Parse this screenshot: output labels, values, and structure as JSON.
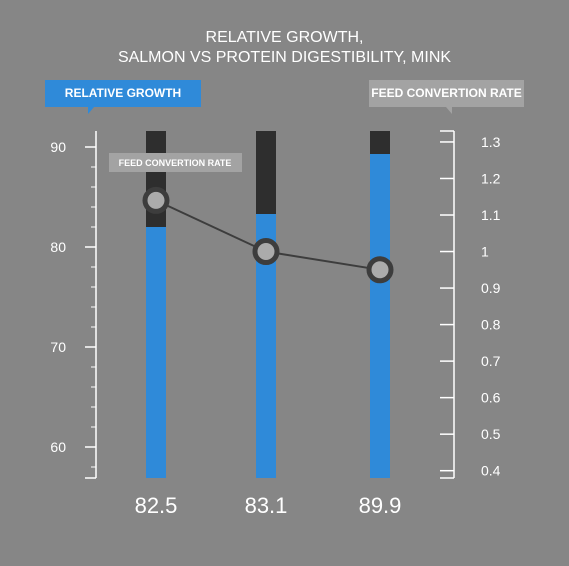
{
  "title": {
    "line1": "RELATIVE GROWTH,",
    "line2": "SALMON VS PROTEIN DIGESTIBILITY, MINK"
  },
  "legend": {
    "left_label": "RELATIVE GROWTH",
    "right_label": "FEED CONVERTION RATE"
  },
  "annotation": "FEED CONVERTION RATE",
  "colors": {
    "background": "#868686",
    "bar": "#2f8ad9",
    "bar_cap": "#2e2e2e",
    "line": "#3d3d3d",
    "axis": "#ffffff"
  },
  "chart_data": {
    "type": "bar",
    "categories": [
      "82.5",
      "83.1",
      "89.9"
    ],
    "series": [
      {
        "name": "RELATIVE GROWTH",
        "type": "bar",
        "axis": "left",
        "values": [
          82.0,
          83.3,
          89.3
        ]
      },
      {
        "name": "FEED CONVERTION RATE",
        "type": "line",
        "axis": "right",
        "values": [
          1.14,
          1.0,
          0.95
        ]
      }
    ],
    "bar_top": 91.6,
    "left_axis": {
      "ticks": [
        60,
        70,
        80,
        90
      ],
      "ylim": [
        56.9,
        91.6
      ]
    },
    "right_axis": {
      "ticks": [
        0.4,
        0.5,
        0.6,
        0.7,
        0.8,
        0.9,
        1,
        1.1,
        1.2,
        1.3
      ],
      "ylim": [
        0.38,
        1.33
      ]
    },
    "grid": false
  }
}
